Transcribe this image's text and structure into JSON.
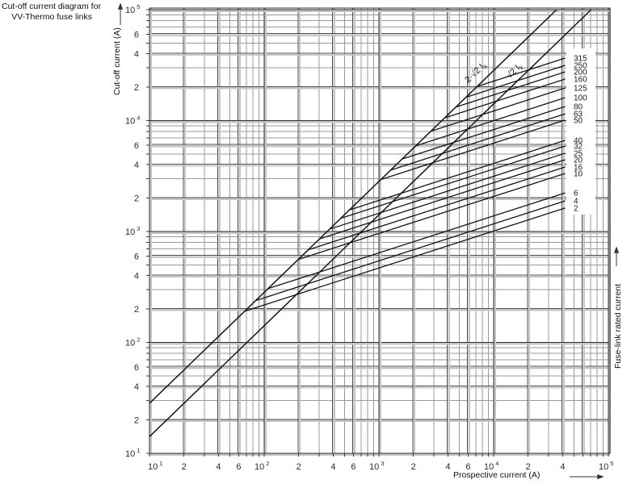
{
  "title": {
    "line1": "Cut-off current diagram for",
    "line2": "VV-Thermo fuse links"
  },
  "axes": {
    "x_label": "Prospective current (A)",
    "y_label": "Cut-off current (A)",
    "right_label": "Fuse-link rated current"
  },
  "colors": {
    "curve": "#141414",
    "grid_minor": "#9a9a9a",
    "grid_dark": "#2f2f2f",
    "grid_shadow": "#c6c6c6",
    "text": "#2b2b2b",
    "background": "#ffffff"
  },
  "chart_data": {
    "type": "line",
    "title": "Cut-off current diagram for VV-Thermo fuse links",
    "xlabel": "Prospective current (A)",
    "ylabel": "Cut-off current (A)",
    "right_axis_label": "Fuse-link rated current",
    "scale": "log-log",
    "grid": "log decades with minor lines 2-9, emphasized at 2,4,6",
    "x_range": [
      10,
      100000
    ],
    "y_range": [
      10,
      100000
    ],
    "decade_base": "10",
    "x_decade_exponents": [
      "1",
      "2",
      "3",
      "4",
      "5"
    ],
    "y_decade_exponents": [
      "1",
      "2",
      "3",
      "4",
      "5"
    ],
    "x_minor_labels": {
      "1": [
        "2",
        "4",
        "6"
      ],
      "2": [
        "2",
        "4",
        "6"
      ],
      "3": [
        "2",
        "4",
        "6"
      ],
      "4": [
        "2",
        "4"
      ]
    },
    "y_minor_labels": {
      "1": [
        "2",
        "4",
        "6"
      ],
      "2": [
        "2",
        "4",
        "6"
      ],
      "3": [
        "2",
        "4",
        "6"
      ],
      "4": [
        "2",
        "4",
        "6"
      ]
    },
    "reference_lines": [
      {
        "label_main": "2·√2 I",
        "label_sub": "k",
        "factor": 2.8284
      },
      {
        "label_main": "√2 I",
        "label_sub": "k",
        "factor": 1.4142
      }
    ],
    "fuse_lines": {
      "slope_loglog": 0.3333,
      "branch_reference_factor": 2.8284,
      "prospective_at_line_end": 42000,
      "series": [
        {
          "rating": "315",
          "cutoff_at_end": 36600
        },
        {
          "rating": "250",
          "cutoff_at_end": 31500
        },
        {
          "rating": "200",
          "cutoff_at_end": 27500
        },
        {
          "rating": "160",
          "cutoff_at_end": 23700
        },
        {
          "rating": "125",
          "cutoff_at_end": 19700
        },
        {
          "rating": "100",
          "cutoff_at_end": 16100
        },
        {
          "rating": "80",
          "cutoff_at_end": 13400
        },
        {
          "rating": "63",
          "cutoff_at_end": 11500
        },
        {
          "rating": "50",
          "cutoff_at_end": 10100
        },
        {
          "rating": "40",
          "cutoff_at_end": 6630
        },
        {
          "rating": "32",
          "cutoff_at_end": 5900
        },
        {
          "rating": "25",
          "cutoff_at_end": 5080
        },
        {
          "rating": "20",
          "cutoff_at_end": 4440
        },
        {
          "rating": "16",
          "cutoff_at_end": 3820
        },
        {
          "rating": "10",
          "cutoff_at_end": 3340
        },
        {
          "rating": "6",
          "cutoff_at_end": 2230
        },
        {
          "rating": "4",
          "cutoff_at_end": 1890
        },
        {
          "rating": "2",
          "cutoff_at_end": 1630
        }
      ]
    }
  }
}
